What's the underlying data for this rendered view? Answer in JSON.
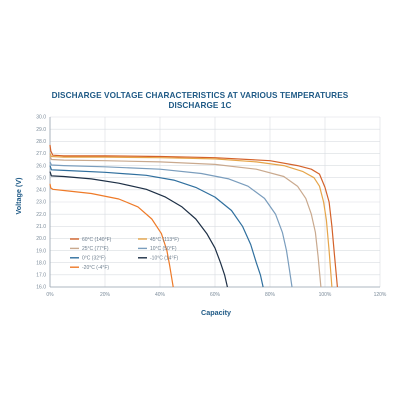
{
  "chart_data": {
    "type": "line",
    "title": "DISCHARGE VOLTAGE CHARACTERISTICS AT VARIOUS TEMPERATURES",
    "subtitle": "DISCHARGE 1C",
    "xlabel": "Capacity",
    "ylabel": "Voltage (V)",
    "xlim": [
      0,
      120
    ],
    "ylim": [
      16.0,
      30.0
    ],
    "x_ticks": [
      "0%",
      "20%",
      "40%",
      "60%",
      "80%",
      "100%",
      "120%"
    ],
    "y_ticks": [
      "30.0",
      "29.0",
      "28.0",
      "27.0",
      "26.0",
      "25.0",
      "24.0",
      "23.0",
      "22.0",
      "21.0",
      "20.0",
      "19.0",
      "18.0",
      "17.0",
      "16.0"
    ],
    "grid": true,
    "legend_position": "bottom-left",
    "series": [
      {
        "name": "60°C (140°F)",
        "color": "#d4622a",
        "x": [
          0,
          0.3,
          1,
          5,
          20,
          40,
          60,
          80,
          90,
          95,
          98,
          100,
          101.5,
          102.5,
          103.5,
          104.5
        ],
        "y": [
          27.7,
          27.2,
          26.85,
          26.8,
          26.8,
          26.75,
          26.65,
          26.4,
          26.0,
          25.7,
          25.3,
          24.2,
          23.0,
          21.0,
          18.5,
          16.0
        ]
      },
      {
        "name": "45°C (113°F)",
        "color": "#e6a54a",
        "x": [
          0,
          0.5,
          5,
          20,
          40,
          60,
          75,
          85,
          92,
          96,
          98,
          99.5,
          100.5,
          101.5,
          102.5
        ],
        "y": [
          27.0,
          26.75,
          26.7,
          26.7,
          26.65,
          26.55,
          26.3,
          26.0,
          25.5,
          25.0,
          24.3,
          23.0,
          21.5,
          19.0,
          16.0
        ]
      },
      {
        "name": "25°C (77°F)",
        "color": "#c9a98e",
        "x": [
          0,
          0.5,
          5,
          20,
          40,
          60,
          75,
          85,
          90,
          93,
          95,
          96.5,
          97.5,
          98.5
        ],
        "y": [
          26.8,
          26.5,
          26.45,
          26.4,
          26.3,
          26.1,
          25.7,
          25.1,
          24.3,
          23.3,
          22.0,
          20.5,
          18.5,
          16.0
        ]
      },
      {
        "name": "10°C (50°F)",
        "color": "#7a9dbd",
        "x": [
          0,
          0.5,
          5,
          20,
          40,
          55,
          65,
          72,
          78,
          82,
          84.5,
          86,
          87,
          88
        ],
        "y": [
          26.3,
          26.05,
          26.0,
          25.9,
          25.7,
          25.35,
          24.9,
          24.3,
          23.3,
          22.0,
          20.5,
          19.0,
          17.5,
          16.0
        ]
      },
      {
        "name": "0°C (32°F)",
        "color": "#2f6f9e",
        "x": [
          0,
          0.5,
          5,
          20,
          35,
          45,
          53,
          60,
          66,
          70,
          73,
          75,
          76.5,
          77.5
        ],
        "y": [
          26.0,
          25.65,
          25.6,
          25.45,
          25.2,
          24.8,
          24.2,
          23.4,
          22.3,
          21.0,
          19.5,
          18.0,
          17.0,
          16.0
        ]
      },
      {
        "name": "-10°C (14°F)",
        "color": "#1d2f45",
        "x": [
          0,
          0.5,
          5,
          15,
          25,
          35,
          42,
          48,
          53,
          57,
          60,
          62,
          63.5,
          64.5
        ],
        "y": [
          25.5,
          25.15,
          25.1,
          24.9,
          24.55,
          24.05,
          23.4,
          22.6,
          21.6,
          20.4,
          19.2,
          18.0,
          17.0,
          16.0
        ]
      },
      {
        "name": "-20°C (-4°F)",
        "color": "#ee7a28",
        "x": [
          0,
          0.3,
          1,
          5,
          15,
          25,
          32,
          37,
          40.5,
          42.5,
          43.5,
          44.2,
          44.8
        ],
        "y": [
          24.5,
          24.15,
          24.05,
          23.95,
          23.7,
          23.25,
          22.6,
          21.6,
          20.4,
          19.0,
          17.8,
          16.8,
          16.0
        ]
      }
    ]
  }
}
